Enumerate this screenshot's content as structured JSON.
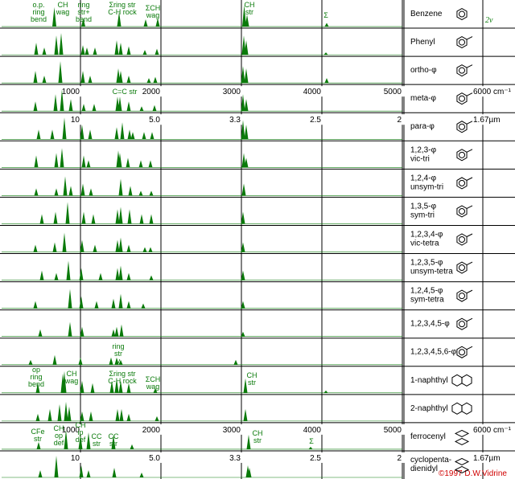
{
  "chart_data": {
    "type": "spectra",
    "color": "#0a7a0a",
    "xlim": [
      0,
      6000
    ],
    "xticks": [
      1000,
      2000,
      3000,
      4000,
      5000,
      {
        "value": 6000,
        "label": "6000 cm⁻¹"
      }
    ],
    "micron_ticks": [
      {
        "value": 1000,
        "label": "10"
      },
      {
        "value": 2000,
        "label": "5.0"
      },
      {
        "value": 3000,
        "label": "3.3"
      },
      {
        "value": 4000,
        "label": "2.5"
      },
      {
        "value": 5000,
        "label": "2"
      },
      {
        "value": 6000,
        "label": "1.67µm"
      }
    ],
    "ylim": [
      0,
      1
    ],
    "overtone_label": "2ν",
    "credit": "©1997 D.W.Vidrine",
    "annotations": [
      {
        "lines": [
          "o.p.",
          "ring",
          "bend"
        ]
      },
      {
        "lines": [
          "CH",
          "wag"
        ]
      },
      {
        "lines": [
          "ring",
          "str+",
          "bend"
        ]
      },
      {
        "lines": [
          "Σring str",
          "C-H rock"
        ]
      },
      {
        "lines": [
          "ΣCH",
          "wag"
        ]
      },
      {
        "lines": [
          "CH",
          "str"
        ]
      },
      {
        "lines": [
          "Σ"
        ]
      },
      {
        "lines": [
          "C=C str"
        ]
      },
      {
        "lines": [
          "ring",
          "str",
          "v"
        ]
      },
      {
        "lines": [
          "op",
          "ring",
          "bend"
        ]
      },
      {
        "lines": [
          "CH",
          "wag"
        ]
      },
      {
        "lines": [
          "Σring str",
          "C-H rock"
        ]
      },
      {
        "lines": [
          "ΣCH",
          "wag"
        ]
      },
      {
        "lines": [
          "CH",
          "str"
        ]
      },
      {
        "lines": [
          "CFe",
          "str"
        ]
      },
      {
        "lines": [
          "CH",
          "op",
          "def"
        ]
      },
      {
        "lines": [
          "CH",
          "ip",
          "def"
        ]
      },
      {
        "lines": [
          "CC",
          "str"
        ]
      },
      {
        "lines": [
          "CC",
          "str"
        ]
      },
      {
        "lines": [
          "CH",
          "str"
        ]
      },
      {
        "lines": [
          "Σ"
        ]
      }
    ],
    "series": [
      {
        "name": "Benzene",
        "x": [
          675,
          1035,
          1480,
          1810,
          1960,
          3035,
          3070,
          4060
        ],
        "values": [
          0.8,
          0.35,
          0.6,
          0.3,
          0.35,
          0.9,
          0.5,
          0.15
        ]
      },
      {
        "name": "Phenyl",
        "x": [
          450,
          550,
          700,
          760,
          1030,
          1080,
          1180,
          1450,
          1500,
          1600,
          1800,
          1950,
          3030,
          3060,
          4050
        ],
        "values": [
          0.5,
          0.3,
          0.8,
          0.9,
          0.4,
          0.3,
          0.3,
          0.6,
          0.5,
          0.35,
          0.2,
          0.25,
          0.8,
          0.6,
          0.1
        ]
      },
      {
        "name": "ortho-φ",
        "x": [
          440,
          550,
          750,
          1030,
          1120,
          1470,
          1500,
          1600,
          1850,
          1930,
          3020,
          3060,
          4060
        ],
        "values": [
          0.5,
          0.3,
          0.9,
          0.5,
          0.3,
          0.6,
          0.5,
          0.3,
          0.2,
          0.25,
          0.7,
          0.6,
          0.2
        ]
      },
      {
        "name": "meta-φ",
        "x": [
          440,
          690,
          770,
          880,
          1040,
          1170,
          1460,
          1490,
          1600,
          1760,
          1920,
          3020,
          3060
        ],
        "values": [
          0.4,
          0.7,
          0.9,
          0.5,
          0.3,
          0.3,
          0.6,
          0.6,
          0.4,
          0.2,
          0.25,
          0.7,
          0.5
        ]
      },
      {
        "name": "para-φ",
        "x": [
          480,
          650,
          800,
          1020,
          1120,
          1450,
          1520,
          1610,
          1650,
          1790,
          1890,
          3020,
          3060
        ],
        "values": [
          0.4,
          0.4,
          0.9,
          0.6,
          0.4,
          0.5,
          0.7,
          0.4,
          0.3,
          0.3,
          0.3,
          0.8,
          0.6
        ]
      },
      {
        "name": "1,2,3-φ",
        "subname": "vic-tri",
        "x": [
          450,
          700,
          770,
          1040,
          1100,
          1470,
          1490,
          1590,
          1750,
          1870,
          3030,
          3060
        ],
        "values": [
          0.5,
          0.6,
          0.8,
          0.5,
          0.3,
          0.7,
          0.6,
          0.4,
          0.3,
          0.3,
          0.6,
          0.4
        ]
      },
      {
        "name": "1,2,4-φ",
        "subname": "unsym-tri",
        "x": [
          450,
          700,
          810,
          880,
          1030,
          1130,
          1500,
          1620,
          1750,
          1880,
          3030
        ],
        "values": [
          0.3,
          0.3,
          0.8,
          0.4,
          0.5,
          0.3,
          0.7,
          0.4,
          0.2,
          0.2,
          0.5
        ]
      },
      {
        "name": "1,3,5-φ",
        "subname": "sym-tri",
        "x": [
          520,
          690,
          840,
          1040,
          1160,
          1460,
          1500,
          1610,
          1760,
          1880,
          3020
        ],
        "values": [
          0.4,
          0.5,
          0.9,
          0.5,
          0.4,
          0.6,
          0.7,
          0.6,
          0.4,
          0.4,
          0.5
        ]
      },
      {
        "name": "1,2,3,4-φ",
        "subname": "vic-tetra",
        "x": [
          440,
          680,
          800,
          1020,
          1180,
          1460,
          1500,
          1600,
          1800,
          1870,
          3020
        ],
        "values": [
          0.3,
          0.4,
          0.8,
          0.5,
          0.3,
          0.5,
          0.6,
          0.3,
          0.2,
          0.2,
          0.4
        ]
      },
      {
        "name": "1,2,3,5-φ",
        "subname": "unsym-tetra",
        "x": [
          520,
          700,
          850,
          1010,
          1250,
          1460,
          1500,
          1600,
          1880,
          3020
        ],
        "values": [
          0.4,
          0.3,
          0.8,
          0.5,
          0.3,
          0.5,
          0.6,
          0.3,
          0.2,
          0.4
        ]
      },
      {
        "name": "1,2,4,5-φ",
        "subname": "sym-tetra",
        "x": [
          440,
          870,
          1010,
          1200,
          1410,
          1500,
          1600,
          1780,
          3020
        ],
        "values": [
          0.3,
          0.8,
          0.5,
          0.3,
          0.4,
          0.6,
          0.3,
          0.2,
          0.3
        ]
      },
      {
        "name": "1,2,3,4,5-φ",
        "x": [
          500,
          870,
          1020,
          1410,
          1450,
          1510,
          3020
        ],
        "values": [
          0.3,
          0.6,
          0.4,
          0.3,
          0.4,
          0.5,
          0.2
        ]
      },
      {
        "name": "1,2,3,4,5,6-φ",
        "x": [
          380,
          680,
          1000,
          1380,
          1450,
          1500,
          2930
        ],
        "values": [
          0.2,
          0.4,
          0.3,
          0.3,
          0.3,
          0.2,
          0.2
        ]
      },
      {
        "name": "1-naphthyl",
        "x": [
          470,
          780,
          800,
          1020,
          1150,
          1390,
          1450,
          1500,
          1600,
          1930,
          3050,
          4050
        ],
        "values": [
          0.4,
          0.8,
          0.9,
          0.5,
          0.4,
          0.5,
          0.6,
          0.5,
          0.4,
          0.2,
          0.6,
          0.1
        ]
      },
      {
        "name": "2-naphthyl",
        "x": [
          470,
          620,
          740,
          820,
          860,
          1020,
          1130,
          1460,
          1510,
          1600,
          1950,
          3050
        ],
        "values": [
          0.3,
          0.5,
          0.7,
          0.8,
          0.6,
          0.4,
          0.4,
          0.5,
          0.5,
          0.3,
          0.2,
          0.5
        ]
      },
      {
        "name": "ferrocenyl",
        "x": [
          480,
          820,
          1000,
          1100,
          1410,
          1640,
          3090,
          3860
        ],
        "values": [
          0.3,
          0.8,
          0.6,
          0.7,
          0.6,
          0.2,
          0.6,
          0.1
        ]
      },
      {
        "name": "cyclopenta-",
        "subname": "dienidyl",
        "x": [
          500,
          700,
          1010,
          1100,
          1420,
          1760,
          3080,
          3100
        ],
        "values": [
          0.3,
          0.9,
          0.5,
          0.3,
          0.4,
          0.2,
          0.5,
          0.4
        ]
      }
    ]
  }
}
